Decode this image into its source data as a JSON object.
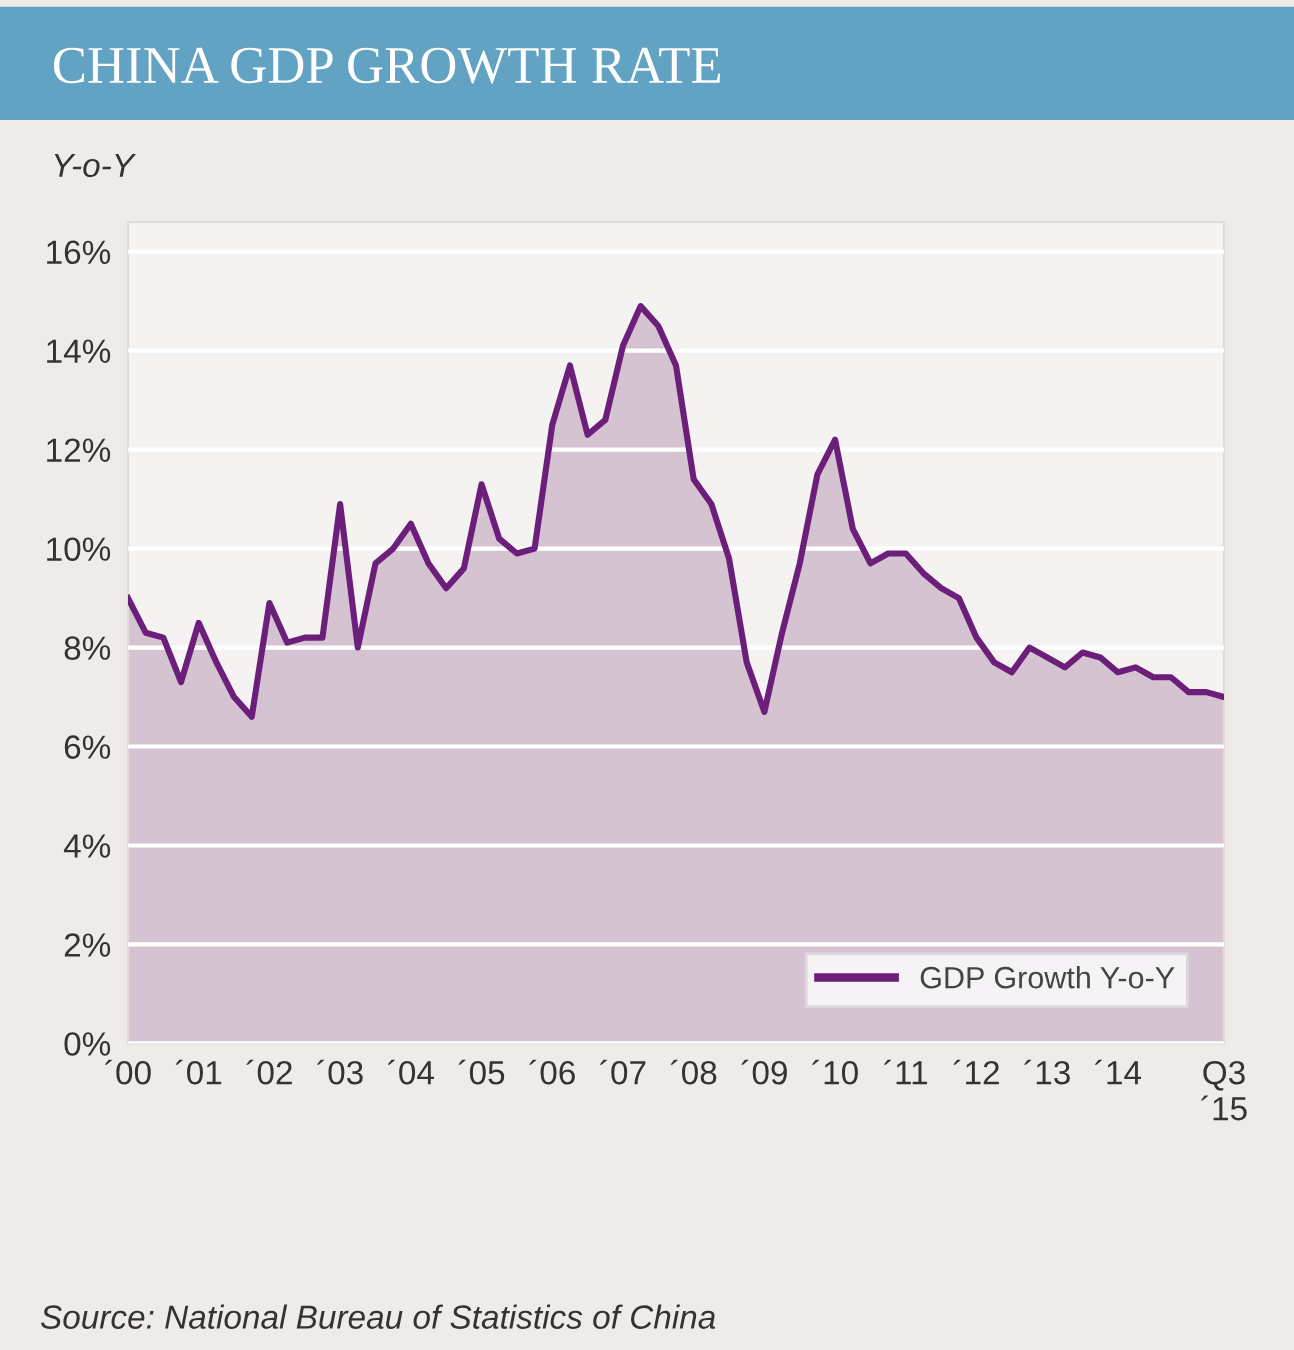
{
  "chart_data": {
    "type": "area",
    "title": "CHINA GDP GROWTH RATE",
    "ylabel": "Y-o-Y",
    "categories": [
      "´00",
      null,
      null,
      null,
      "´01",
      null,
      null,
      null,
      "´02",
      null,
      null,
      null,
      "´03",
      null,
      null,
      null,
      "´04",
      null,
      null,
      null,
      "´05",
      null,
      null,
      null,
      "´06",
      null,
      null,
      null,
      "´07",
      null,
      null,
      null,
      "´08",
      null,
      null,
      null,
      "´09",
      null,
      null,
      null,
      "´10",
      null,
      null,
      null,
      "´11",
      null,
      null,
      null,
      "´12",
      null,
      null,
      null,
      "´13",
      null,
      null,
      null,
      "´14",
      null,
      null,
      null,
      null,
      null,
      "Q3\n´15"
    ],
    "series": [
      {
        "name": "GDP Growth Y-o-Y",
        "color": "#6b1f7b",
        "values": [
          9.0,
          8.3,
          8.2,
          7.3,
          8.5,
          7.7,
          7.0,
          6.6,
          8.9,
          8.1,
          8.2,
          8.2,
          10.9,
          8.0,
          9.7,
          10.0,
          10.5,
          9.7,
          9.2,
          9.6,
          11.3,
          10.2,
          9.9,
          10.0,
          12.5,
          13.7,
          12.3,
          12.6,
          14.1,
          14.9,
          14.5,
          13.7,
          11.4,
          10.9,
          9.8,
          7.7,
          6.7,
          8.3,
          9.7,
          11.5,
          12.2,
          10.4,
          9.7,
          9.9,
          9.9,
          9.5,
          9.2,
          9.0,
          8.2,
          7.7,
          7.5,
          8.0,
          7.8,
          7.6,
          7.9,
          7.8,
          7.5,
          7.6,
          7.4,
          7.4,
          7.1,
          7.1,
          7.0
        ]
      }
    ],
    "ylim": [
      0,
      16.6
    ],
    "yticks": [
      {
        "value": 0,
        "label": "0%"
      },
      {
        "value": 2,
        "label": "2%"
      },
      {
        "value": 4,
        "label": "4%"
      },
      {
        "value": 6,
        "label": "6%"
      },
      {
        "value": 8,
        "label": "8%"
      },
      {
        "value": 10,
        "label": "10%"
      },
      {
        "value": 12,
        "label": "12%"
      },
      {
        "value": 14,
        "label": "14%"
      },
      {
        "value": 16,
        "label": "16%"
      }
    ],
    "grid": "y",
    "legend": "bottom right",
    "marker": "none",
    "line_style": "solid",
    "annotations": [
      "Source: National Bureau of Statistics of China"
    ]
  }
}
